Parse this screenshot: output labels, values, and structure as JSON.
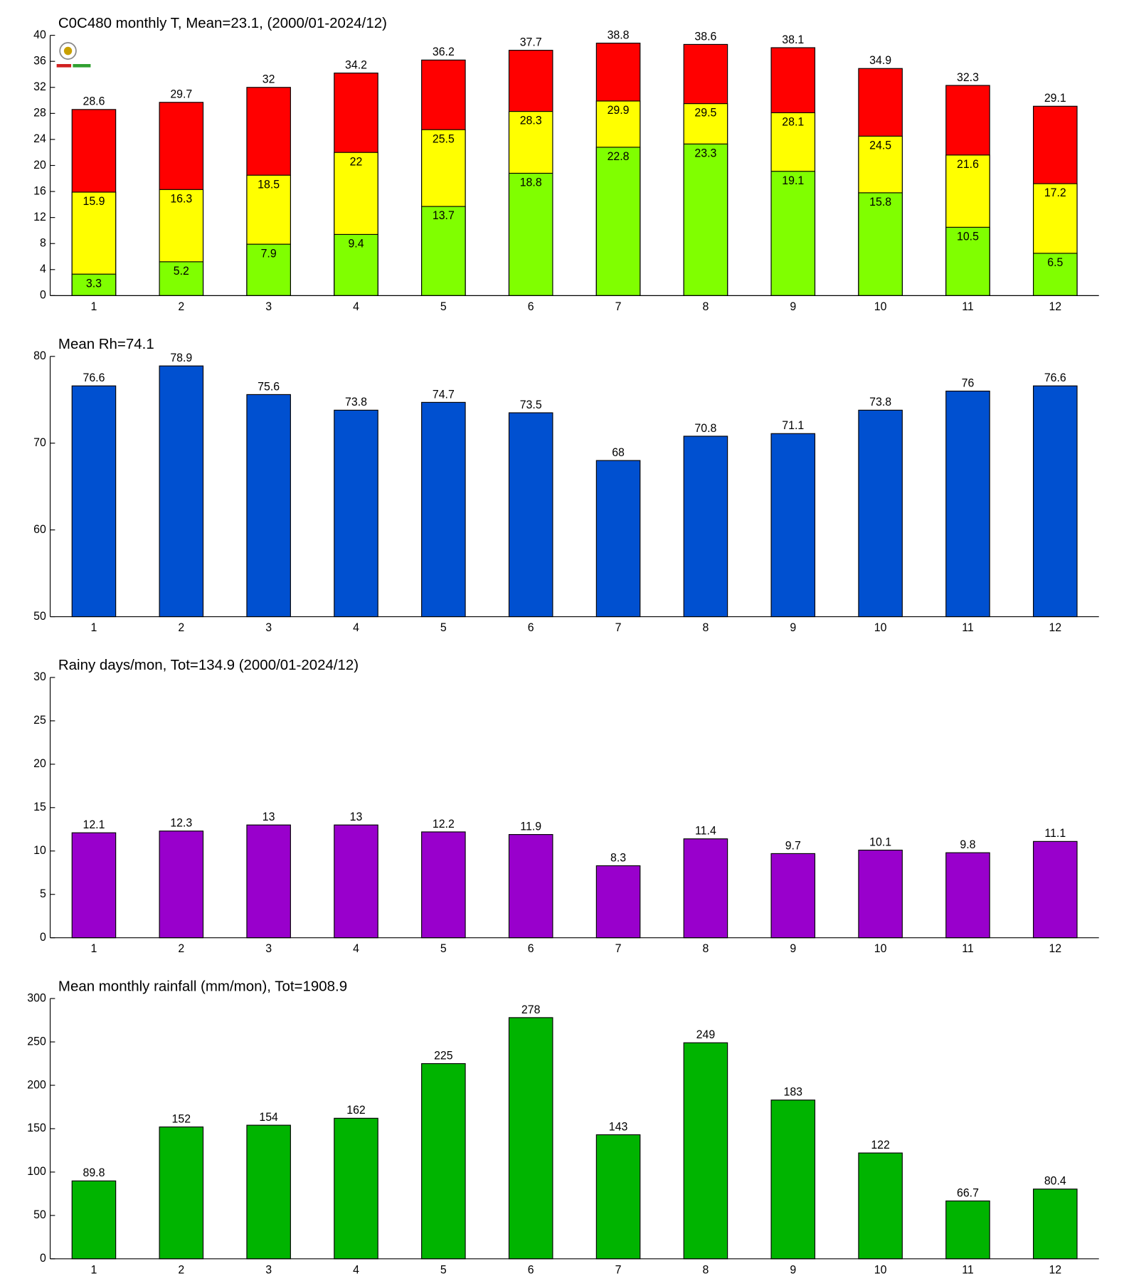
{
  "chart_data": [
    {
      "type": "bar",
      "barmode": "overlay",
      "title": "C0C480 monthly T, Mean=23.1, (2000/01-2024/12)",
      "categories": [
        1,
        2,
        3,
        4,
        5,
        6,
        7,
        8,
        9,
        10,
        11,
        12
      ],
      "series": [
        {
          "color": "#ff0000",
          "values": [
            28.6,
            29.7,
            32,
            34.2,
            36.2,
            37.7,
            38.8,
            38.6,
            38.1,
            34.9,
            32.3,
            29.1
          ]
        },
        {
          "color": "#ffff00",
          "values": [
            15.9,
            16.3,
            18.5,
            22,
            25.5,
            28.3,
            29.9,
            29.5,
            28.1,
            24.5,
            21.6,
            17.2
          ]
        },
        {
          "color": "#80ff00",
          "values": [
            3.3,
            5.2,
            7.9,
            9.4,
            13.7,
            18.8,
            22.8,
            23.3,
            19.1,
            15.8,
            10.5,
            6.5
          ]
        }
      ],
      "ylim": [
        0,
        40
      ],
      "yticks": [
        0,
        4,
        8,
        12,
        16,
        20,
        24,
        28,
        32,
        36,
        40
      ]
    },
    {
      "type": "bar",
      "title": "Mean Rh=74.1",
      "categories": [
        1,
        2,
        3,
        4,
        5,
        6,
        7,
        8,
        9,
        10,
        11,
        12
      ],
      "series": [
        {
          "color": "#0050d0",
          "values": [
            76.6,
            78.9,
            75.6,
            73.8,
            74.7,
            73.5,
            68,
            70.8,
            71.1,
            73.8,
            76,
            76.6
          ]
        }
      ],
      "ylim": [
        50,
        80
      ],
      "yticks": [
        50,
        60,
        70,
        80
      ]
    },
    {
      "type": "bar",
      "title": "Rainy days/mon, Tot=134.9 (2000/01-2024/12)",
      "categories": [
        1,
        2,
        3,
        4,
        5,
        6,
        7,
        8,
        9,
        10,
        11,
        12
      ],
      "series": [
        {
          "color": "#9900cc",
          "values": [
            12.1,
            12.3,
            13,
            13,
            12.2,
            11.9,
            8.3,
            11.4,
            9.7,
            10.1,
            9.8,
            11.1
          ]
        }
      ],
      "ylim": [
        0,
        30
      ],
      "yticks": [
        0,
        5,
        10,
        15,
        20,
        25,
        30
      ]
    },
    {
      "type": "bar",
      "title": "Mean monthly rainfall (mm/mon), Tot=1908.9",
      "categories": [
        1,
        2,
        3,
        4,
        5,
        6,
        7,
        8,
        9,
        10,
        11,
        12
      ],
      "series": [
        {
          "color": "#00b400",
          "values": [
            89.8,
            152,
            154,
            162,
            225,
            278,
            143,
            249,
            183,
            122,
            66.7,
            80.4
          ]
        }
      ],
      "ylim": [
        0,
        300
      ],
      "yticks": [
        0,
        50,
        100,
        150,
        200,
        250,
        300
      ]
    }
  ]
}
